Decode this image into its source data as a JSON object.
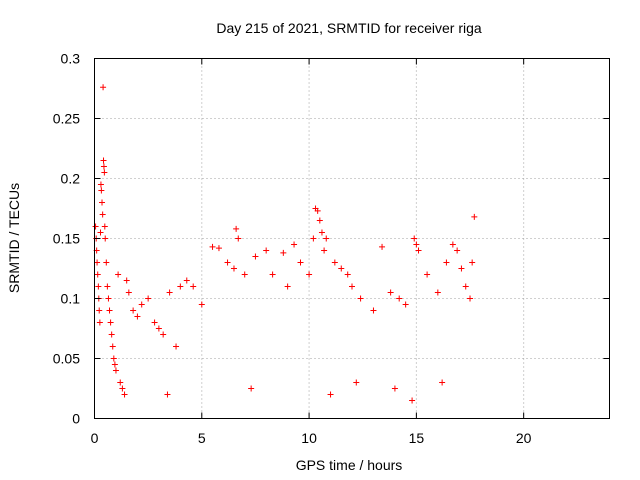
{
  "chart_data": {
    "type": "scatter",
    "title": "Day 215 of 2021, SRMTID for receiver riga",
    "xlabel": "GPS time / hours",
    "ylabel": "SRMTID / TECUs",
    "xlim": [
      0,
      24
    ],
    "ylim": [
      0,
      0.3
    ],
    "xticks": [
      0,
      5,
      10,
      15,
      20
    ],
    "yticks": [
      0,
      0.05,
      0.1,
      0.15,
      0.2,
      0.25,
      0.3
    ],
    "xtick_labels": [
      "0",
      "5",
      "10",
      "15",
      "20"
    ],
    "ytick_labels": [
      "0",
      "0.05",
      "0.1",
      "0.15",
      "0.2",
      "0.25",
      "0.3"
    ],
    "grid": true,
    "legend": "none",
    "marker": "plus",
    "series_color": "#ff0000",
    "series": [
      {
        "points": [
          [
            0.05,
            0.16
          ],
          [
            0.08,
            0.15
          ],
          [
            0.1,
            0.14
          ],
          [
            0.12,
            0.13
          ],
          [
            0.15,
            0.12
          ],
          [
            0.18,
            0.11
          ],
          [
            0.2,
            0.1
          ],
          [
            0.22,
            0.09
          ],
          [
            0.25,
            0.08
          ],
          [
            0.28,
            0.155
          ],
          [
            0.3,
            0.195
          ],
          [
            0.32,
            0.19
          ],
          [
            0.35,
            0.18
          ],
          [
            0.38,
            0.17
          ],
          [
            0.4,
            0.276
          ],
          [
            0.42,
            0.215
          ],
          [
            0.44,
            0.21
          ],
          [
            0.46,
            0.205
          ],
          [
            0.48,
            0.16
          ],
          [
            0.5,
            0.15
          ],
          [
            0.55,
            0.13
          ],
          [
            0.6,
            0.11
          ],
          [
            0.65,
            0.1
          ],
          [
            0.7,
            0.09
          ],
          [
            0.75,
            0.08
          ],
          [
            0.8,
            0.07
          ],
          [
            0.85,
            0.06
          ],
          [
            0.9,
            0.05
          ],
          [
            0.95,
            0.045
          ],
          [
            1.0,
            0.04
          ],
          [
            1.1,
            0.12
          ],
          [
            1.2,
            0.03
          ],
          [
            1.3,
            0.025
          ],
          [
            1.4,
            0.02
          ],
          [
            1.5,
            0.115
          ],
          [
            1.6,
            0.105
          ],
          [
            1.8,
            0.09
          ],
          [
            2.0,
            0.085
          ],
          [
            2.2,
            0.095
          ],
          [
            2.5,
            0.1
          ],
          [
            2.8,
            0.08
          ],
          [
            3.0,
            0.075
          ],
          [
            3.2,
            0.07
          ],
          [
            3.5,
            0.105
          ],
          [
            3.8,
            0.06
          ],
          [
            4.0,
            0.11
          ],
          [
            4.3,
            0.115
          ],
          [
            4.6,
            0.11
          ],
          [
            5.0,
            0.095
          ],
          [
            5.5,
            0.143
          ],
          [
            5.8,
            0.142
          ],
          [
            6.2,
            0.13
          ],
          [
            6.5,
            0.125
          ],
          [
            6.6,
            0.158
          ],
          [
            6.7,
            0.15
          ],
          [
            7.0,
            0.12
          ],
          [
            7.5,
            0.135
          ],
          [
            8.0,
            0.14
          ],
          [
            8.3,
            0.12
          ],
          [
            8.8,
            0.138
          ],
          [
            9.0,
            0.11
          ],
          [
            9.3,
            0.145
          ],
          [
            9.6,
            0.13
          ],
          [
            10.0,
            0.12
          ],
          [
            10.2,
            0.15
          ],
          [
            10.3,
            0.175
          ],
          [
            10.4,
            0.173
          ],
          [
            10.5,
            0.165
          ],
          [
            10.6,
            0.155
          ],
          [
            10.7,
            0.14
          ],
          [
            10.8,
            0.15
          ],
          [
            11.2,
            0.13
          ],
          [
            11.5,
            0.125
          ],
          [
            11.8,
            0.12
          ],
          [
            12.0,
            0.11
          ],
          [
            12.4,
            0.1
          ],
          [
            13.0,
            0.09
          ],
          [
            13.4,
            0.143
          ],
          [
            13.8,
            0.105
          ],
          [
            14.2,
            0.1
          ],
          [
            14.5,
            0.095
          ],
          [
            14.9,
            0.15
          ],
          [
            15.0,
            0.145
          ],
          [
            15.1,
            0.14
          ],
          [
            15.5,
            0.12
          ],
          [
            16.0,
            0.105
          ],
          [
            16.4,
            0.13
          ],
          [
            16.7,
            0.145
          ],
          [
            16.9,
            0.14
          ],
          [
            17.1,
            0.125
          ],
          [
            17.3,
            0.11
          ],
          [
            17.5,
            0.1
          ],
          [
            17.6,
            0.13
          ],
          [
            17.7,
            0.168
          ],
          [
            14.8,
            0.015
          ],
          [
            14.0,
            0.025
          ],
          [
            12.2,
            0.03
          ],
          [
            11.0,
            0.02
          ],
          [
            7.3,
            0.025
          ],
          [
            3.4,
            0.02
          ],
          [
            16.2,
            0.03
          ]
        ]
      }
    ]
  }
}
